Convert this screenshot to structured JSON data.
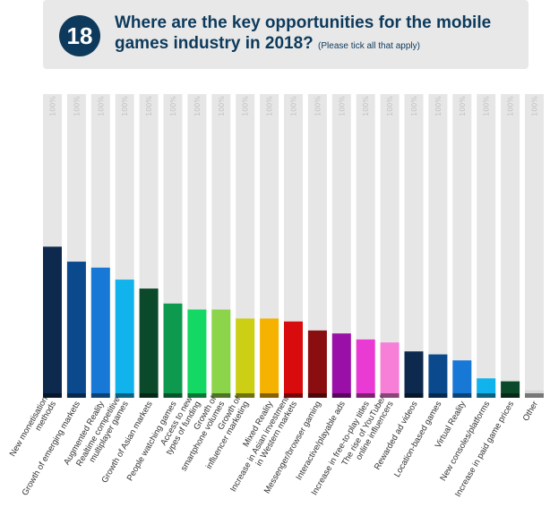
{
  "question": {
    "number": "18",
    "title": "Where are the key opportunities for the mobile games industry in 2018?",
    "note": "(Please tick all that apply)"
  },
  "chart_data": {
    "type": "bar",
    "title": "",
    "xlabel": "",
    "ylabel": "",
    "ylim": [
      0,
      100
    ],
    "grid": false,
    "background_label": "100%",
    "categories": [
      "New monetisation methods",
      "Growth of emerging markets",
      "Augmented Reality",
      "Realtime competitive multiplayer games",
      "Growth of Asian markets",
      "People watching games",
      "Access to new types of funding",
      "Growth of smartphone volumes",
      "Growth of influencer marketing",
      "Mixed Reality",
      "Increase in Asian investment in Western markets",
      "Messenger/browser gaming",
      "Interactive/playable ads",
      "Increase in free-to-play titles",
      "The rise of YouTube/ online influencers",
      "Rewarded ad videos",
      "Location-based games",
      "Virtual Reality",
      "New consoles/platforms",
      "Increase in paid game prices",
      "Other"
    ],
    "label_lines": [
      [
        "New monetisation",
        "methods"
      ],
      [
        "Growth of emerging markets"
      ],
      [
        "Augmented Reality"
      ],
      [
        "Realtime competitive",
        "multiplayer games"
      ],
      [
        "Growth of Asian markets"
      ],
      [
        "People watching games"
      ],
      [
        "Access to new",
        "types of funding"
      ],
      [
        "Growth of",
        "smartphone volumes"
      ],
      [
        "Growth of",
        "influencer marketing"
      ],
      [
        "Mixed Reality"
      ],
      [
        "Increase in Asian investment",
        "in Western markets"
      ],
      [
        "Messenger/browser gaming"
      ],
      [
        "Interactive/playable ads"
      ],
      [
        "Increase in free-to-play titles"
      ],
      [
        "The rise of YouTube/",
        "online influencers"
      ],
      [
        "Rewarded ad videos"
      ],
      [
        "Location-based games"
      ],
      [
        "Virtual Reality"
      ],
      [
        "New consoles/platforms"
      ],
      [
        "Increase in paid game prices"
      ],
      [
        "Other"
      ]
    ],
    "values": [
      49,
      44,
      42,
      38,
      35,
      30,
      28,
      28,
      25,
      25,
      24,
      21,
      20,
      18,
      17,
      14,
      13,
      11,
      5,
      4,
      1
    ],
    "colors": [
      "#0d2a4e",
      "#0a4a8c",
      "#1878d6",
      "#11b3ec",
      "#0a4a2a",
      "#0e9a4e",
      "#14d864",
      "#8cd44a",
      "#cccf14",
      "#f5b200",
      "#d80c0c",
      "#8a0d10",
      "#9a0fa8",
      "#e93bd3",
      "#f77fd8",
      "#0d2a4e",
      "#0a4a8c",
      "#1878d6",
      "#11b3ec",
      "#0a4a2a",
      "#d9d9d9"
    ]
  }
}
